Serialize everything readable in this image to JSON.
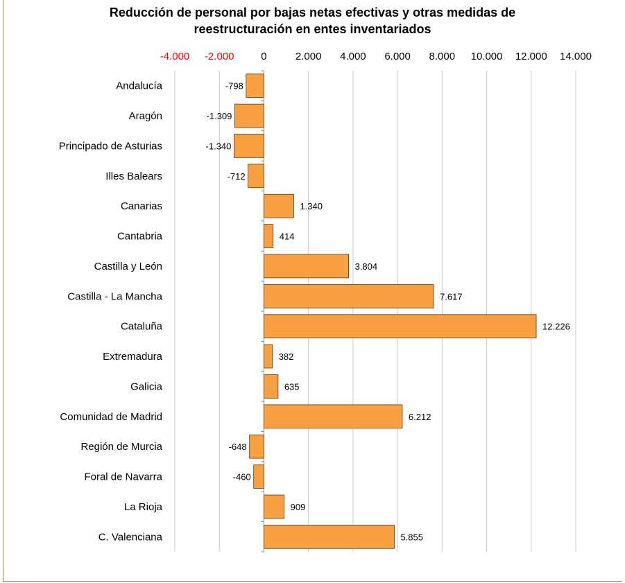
{
  "chart_data": {
    "type": "bar",
    "orientation": "horizontal",
    "title_lines": [
      "Reducción de personal por bajas netas efectivas y otras medidas de",
      "reestructuración en entes inventariados"
    ],
    "categories": [
      "Andalucía",
      "Aragón",
      "Principado de Asturias",
      "Illes Balears",
      "Canarias",
      "Cantabria",
      "Castilla y León",
      "Castilla - La Mancha",
      "Cataluña",
      "Extremadura",
      "Galicia",
      "Comunidad de Madrid",
      "Región de Murcia",
      "Foral de Navarra",
      "La Rioja",
      "C. Valenciana"
    ],
    "values": [
      -798,
      -1309,
      -1340,
      -712,
      1340,
      414,
      3804,
      7617,
      12226,
      382,
      635,
      6212,
      -648,
      -460,
      909,
      5855
    ],
    "data_labels": [
      "-798",
      "-1.309",
      "-1.340",
      "-712",
      "1.340",
      "414",
      "3.804",
      "7.617",
      "12.226",
      "382",
      "635",
      "6.212",
      "-648",
      "-460",
      "909",
      "5.855"
    ],
    "xlim": [
      -4000,
      14000
    ],
    "ticks": [
      -4000,
      -2000,
      0,
      2000,
      4000,
      6000,
      8000,
      10000,
      12000,
      14000
    ],
    "tick_labels": [
      "-4.000",
      "-2.000",
      "0",
      "2.000",
      "4.000",
      "6.000",
      "8.000",
      "10.000",
      "12.000",
      "14.000"
    ],
    "axis_position": "top",
    "grid": true,
    "colors": {
      "bar_fill": "#f9a043",
      "bar_stroke": "#5a3a10",
      "negative_tick": "#ff0000",
      "positive_tick": "#000000",
      "grid": "#c8c8c8",
      "frame": "#7a9a3a"
    }
  }
}
